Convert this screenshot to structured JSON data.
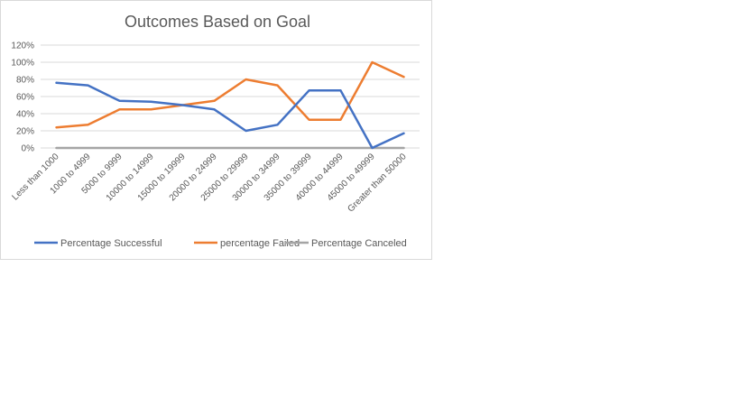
{
  "chart_data": {
    "type": "line",
    "title": "Outcomes Based on Goal",
    "xlabel": "",
    "ylabel": "",
    "categories": [
      "Less than 1000",
      "1000 to 4999",
      "5000 to 9999",
      "10000 to 14999",
      "15000 to 19999",
      "20000 to 24999",
      "25000 to 29999",
      "30000 to 34999",
      "35000 to 39999",
      "40000 to 44999",
      "45000 to 49999",
      "Greater than 50000"
    ],
    "yticks": [
      "0%",
      "20%",
      "40%",
      "60%",
      "80%",
      "100%",
      "120%"
    ],
    "ylim": [
      0,
      1.2
    ],
    "grid": true,
    "legend_position": "bottom",
    "series": [
      {
        "name": "Percentage Successful",
        "color": "#4472c4",
        "values": [
          0.76,
          0.73,
          0.55,
          0.54,
          0.5,
          0.45,
          0.2,
          0.27,
          0.67,
          0.67,
          0.0,
          0.17
        ]
      },
      {
        "name": "percentage Failed",
        "color": "#ed7d31",
        "values": [
          0.24,
          0.27,
          0.45,
          0.45,
          0.5,
          0.55,
          0.8,
          0.73,
          0.33,
          0.33,
          1.0,
          0.83
        ]
      },
      {
        "name": "Percentage Canceled",
        "color": "#a5a5a5",
        "values": [
          0,
          0,
          0,
          0,
          0,
          0,
          0,
          0,
          0,
          0,
          0,
          0
        ]
      }
    ]
  }
}
